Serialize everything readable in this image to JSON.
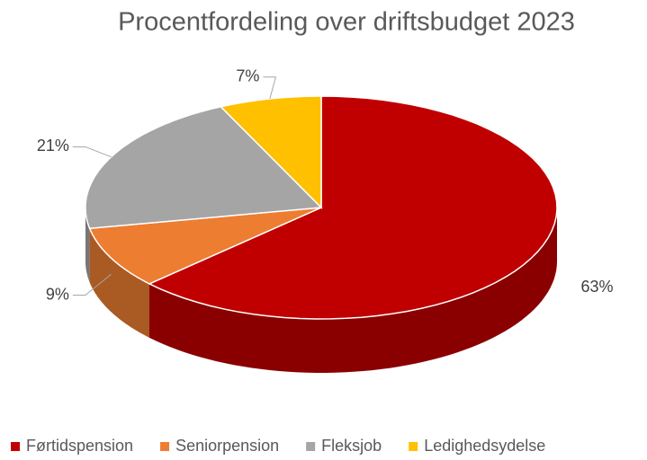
{
  "chart_data": {
    "type": "pie",
    "title": "Procentfordeling over driftsbudget 2023",
    "categories": [
      "Førtidspension",
      "Seniorpension",
      "Fleksjob",
      "Ledighedsydelse"
    ],
    "values": [
      63,
      9,
      21,
      7
    ],
    "value_labels": [
      "63%",
      "9%",
      "21%",
      "7%"
    ],
    "colors": [
      "#c00000",
      "#ed7d31",
      "#a5a5a5",
      "#ffc000"
    ],
    "legend": "bottom"
  }
}
